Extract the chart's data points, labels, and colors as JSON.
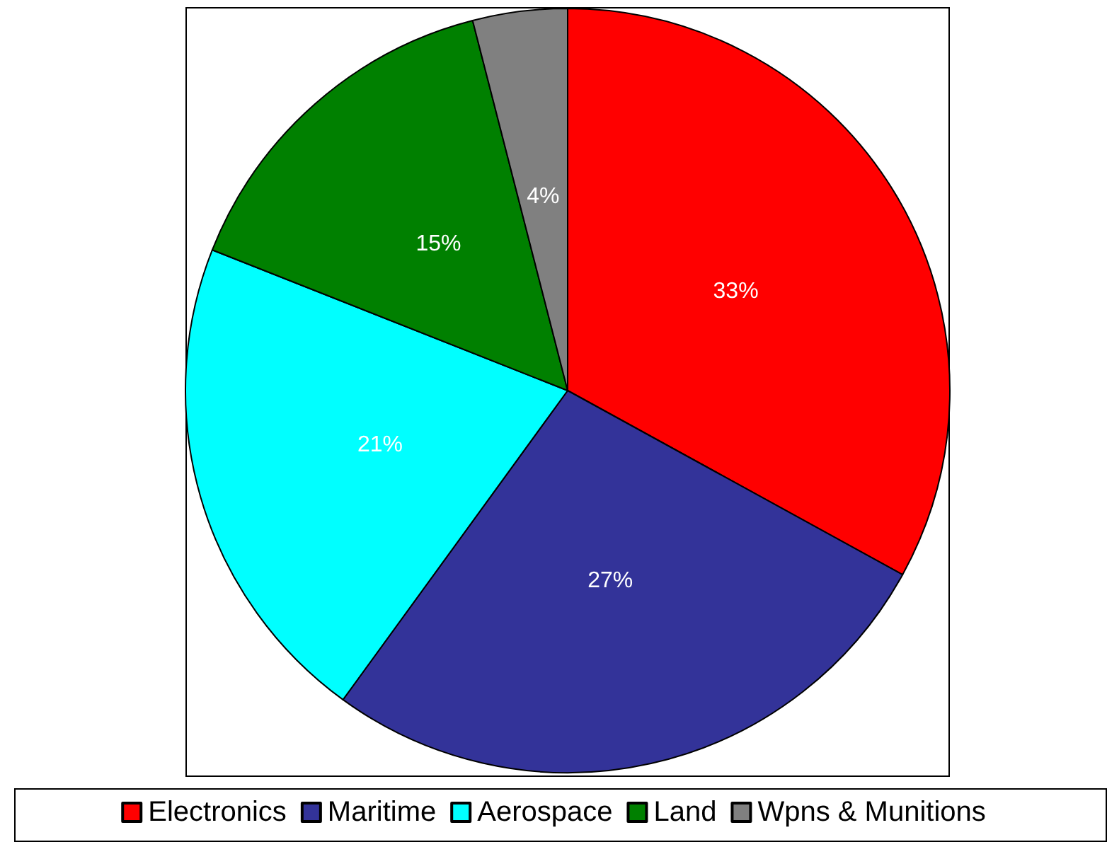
{
  "chart_data": {
    "type": "pie",
    "categories": [
      "Electronics",
      "Maritime",
      "Aerospace",
      "Land",
      "Wpns & Munitions"
    ],
    "values": [
      33,
      27,
      21,
      15,
      4
    ],
    "value_labels": [
      "33%",
      "27%",
      "21%",
      "15%",
      "4%"
    ],
    "colors": [
      "#ff0000",
      "#333399",
      "#00ffff",
      "#008000",
      "#808080"
    ],
    "legend": "bottom"
  }
}
